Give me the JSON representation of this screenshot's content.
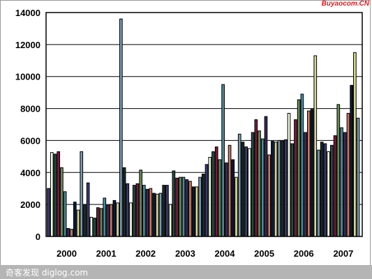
{
  "source_label": "Buyaocom.CN",
  "footer_text": "奇客发现 diglog.com",
  "chart_data": {
    "type": "bar",
    "title": "",
    "xlabel": "",
    "ylabel": "",
    "ylim": [
      0,
      14000
    ],
    "yticks": [
      0,
      2000,
      4000,
      6000,
      8000,
      10000,
      12000,
      14000
    ],
    "ytick_labels": [
      "0",
      "2000",
      "4000",
      "6000",
      "8000",
      "10000",
      "12000",
      "14000"
    ],
    "xtick_labels": [
      "2000",
      "2001",
      "2002",
      "2003",
      "2004",
      "2005",
      "2006",
      "2007"
    ],
    "months_per_year": 12,
    "grid": true,
    "bar_palette": [
      "#3a3a6e",
      "#f0ffe0",
      "#244a44",
      "#7a1a3a",
      "#6a8a5a",
      "#4a8a9a",
      "#3a2a5a",
      "#c87860",
      "#0a1a3a",
      "#d8d890",
      "#7a9ab0",
      "#1a2a2a"
    ],
    "values": [
      3000,
      5250,
      5150,
      5300,
      4300,
      2800,
      500,
      450,
      2150,
      1650,
      5300,
      2000,
      3350,
      1200,
      1150,
      1800,
      1750,
      2400,
      1950,
      2000,
      2250,
      2100,
      13600,
      4300,
      3300,
      2100,
      3200,
      3300,
      4150,
      3200,
      2950,
      3000,
      2700,
      2650,
      2700,
      3200,
      3200,
      2000,
      4100,
      3650,
      3700,
      3700,
      3550,
      3450,
      3100,
      3100,
      3700,
      3900,
      4500,
      4950,
      5300,
      5600,
      4800,
      9500,
      4600,
      5700,
      4800,
      3700,
      6400,
      5900,
      5600,
      5500,
      6500,
      7300,
      6600,
      6100,
      7500,
      5100,
      5950,
      5900,
      6000,
      6000,
      6050,
      7700,
      5800,
      7300,
      8550,
      8900,
      6500,
      7850,
      7950,
      11300,
      5400,
      5900,
      5800,
      5300,
      5700,
      6300,
      8250,
      6800,
      6500,
      7700,
      9450,
      11500,
      7400
    ]
  }
}
